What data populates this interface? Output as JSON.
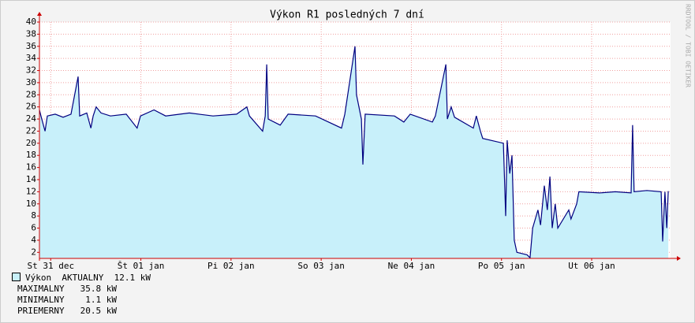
{
  "chart_data": {
    "type": "area",
    "title": "Výkon R1 posledných 7 dní",
    "side_text": "RRDTOOL / TOBI OETIKER",
    "x": [
      0,
      0.4,
      1.5,
      2.1,
      4.2,
      6.3,
      8.4,
      10.3,
      10.7,
      12.6,
      13.7,
      14.3,
      15.1,
      16.4,
      18.9,
      23.1,
      26.0,
      26.9,
      30.5,
      33.6,
      39.9,
      46.2,
      52.5,
      55.2,
      55.9,
      59.4,
      60.1,
      60.5,
      60.9,
      64.1,
      66.2,
      73.5,
      80.4,
      81.3,
      84.0,
      84.4,
      85.7,
      86.1,
      86.7,
      94.5,
      97.0,
      98.7,
      104.6,
      105.4,
      108.2,
      108.6,
      109.6,
      110.5,
      115.5,
      116.3,
      117.4,
      118.0,
      123.5,
      124.1,
      124.5,
      125.2,
      125.8,
      126.4,
      127.1,
      129.8,
      130.6,
      131.3,
      132.7,
      133.4,
      134.4,
      135.2,
      135.9,
      136.5,
      137.3,
      138.0,
      140.9,
      141.5,
      143.0,
      143.6,
      149.1,
      153.3,
      157.5,
      157.9,
      158.3,
      161.7,
      165.5,
      165.9,
      166.5,
      167.0,
      167.4
    ],
    "series": [
      {
        "name": "Výkon",
        "color": "#000080",
        "fill": "#c8f0fa",
        "values": [
          25.5,
          24.5,
          22,
          24.5,
          24.8,
          24.3,
          24.8,
          31,
          24.5,
          25,
          22.5,
          24.5,
          26,
          25,
          24.5,
          24.8,
          22.5,
          24.5,
          25.5,
          24.5,
          25,
          24.5,
          24.8,
          26,
          24.5,
          22,
          24.5,
          33,
          24,
          23,
          24.8,
          24.5,
          22.5,
          24.8,
          36,
          28,
          24,
          16.5,
          24.8,
          24.5,
          23.5,
          24.8,
          23.5,
          24.5,
          33,
          24,
          26,
          24.3,
          22.5,
          24.5,
          22,
          20.8,
          20,
          8,
          20.5,
          15,
          18,
          4,
          2,
          1.6,
          1.1,
          6,
          9,
          6.5,
          13,
          9,
          14.5,
          6,
          10,
          6,
          9,
          7.5,
          10,
          12,
          11.8,
          12,
          11.8,
          23,
          12,
          12.2,
          12,
          3.8,
          12,
          6,
          12.1
        ]
      }
    ],
    "xlim": [
      0,
      168
    ],
    "xticks": [
      {
        "value": 3,
        "label": "St 31 dec"
      },
      {
        "value": 27,
        "label": "Št 01 jan"
      },
      {
        "value": 51,
        "label": "Pi 02 jan"
      },
      {
        "value": 75,
        "label": "So 03 jan"
      },
      {
        "value": 99,
        "label": "Ne 04 jan"
      },
      {
        "value": 123,
        "label": "Po 05 jan"
      },
      {
        "value": 147,
        "label": "Ut 06 jan"
      }
    ],
    "ylim": [
      1,
      40
    ],
    "yticks": [
      2,
      4,
      6,
      8,
      10,
      12,
      14,
      16,
      18,
      20,
      22,
      24,
      26,
      28,
      30,
      32,
      34,
      36,
      38,
      40
    ],
    "grid": true,
    "legend": {
      "current_label": "AKTUALNY",
      "current": "12.1 kW",
      "stats": [
        {
          "label": "MAXIMALNY",
          "value": "35.8 kW"
        },
        {
          "label": "MINIMALNY",
          "value": "1.1 kW"
        },
        {
          "label": "PRIEMERNY",
          "value": "20.5 kW"
        }
      ]
    }
  }
}
